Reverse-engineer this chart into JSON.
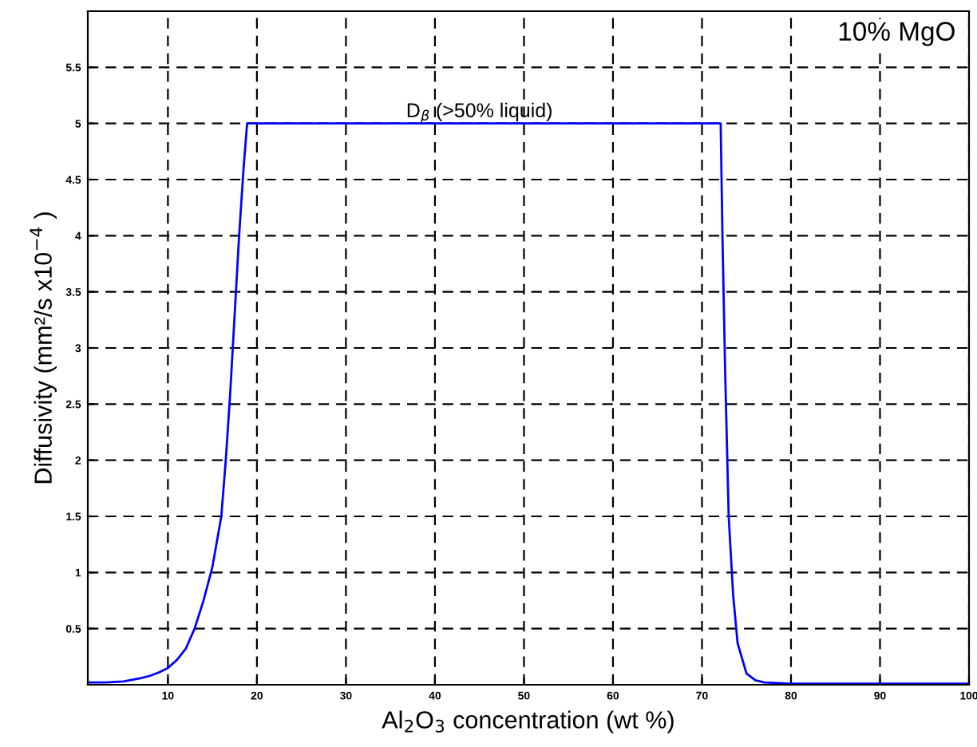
{
  "chart_data": {
    "type": "line",
    "xlabel": "Al$_{2}$O$_{3}$ concentration (wt %)",
    "ylabel": "Diffusivity (mm²/s x10$^{−4}$ )",
    "annotations": [
      {
        "text": "D$_{β}$ (>50% liquid)",
        "x": 45,
        "y": 5
      },
      "10% MgO"
    ],
    "series": [
      {
        "color": "#0000ff",
        "x": [
          1,
          3,
          5,
          7,
          8,
          9,
          10,
          11,
          12,
          13,
          14,
          15,
          16,
          16.5,
          17,
          17.5,
          18,
          18.5,
          18.9,
          72.1,
          72.3,
          72.6,
          73,
          73.5,
          74,
          75,
          76,
          77,
          80,
          90,
          100
        ],
        "values": [
          0.02,
          0.02,
          0.03,
          0.06,
          0.08,
          0.11,
          0.15,
          0.22,
          0.32,
          0.5,
          0.75,
          1.05,
          1.5,
          2.0,
          2.6,
          3.3,
          4.0,
          4.6,
          5.0,
          5.0,
          4.0,
          2.8,
          1.5,
          0.8,
          0.37,
          0.1,
          0.04,
          0.02,
          0.01,
          0.01,
          0.01
        ]
      }
    ],
    "xlim": [
      1,
      100
    ],
    "ylim": [
      0,
      6
    ],
    "xticks": [
      10,
      20,
      30,
      40,
      50,
      60,
      70,
      80,
      90,
      100
    ],
    "yticks": [
      0.5,
      1,
      1.5,
      2,
      2.5,
      3,
      3.5,
      4,
      4.5,
      5,
      5.5
    ],
    "grid": true,
    "line_style": "solid",
    "marker": "none",
    "legend": false
  }
}
